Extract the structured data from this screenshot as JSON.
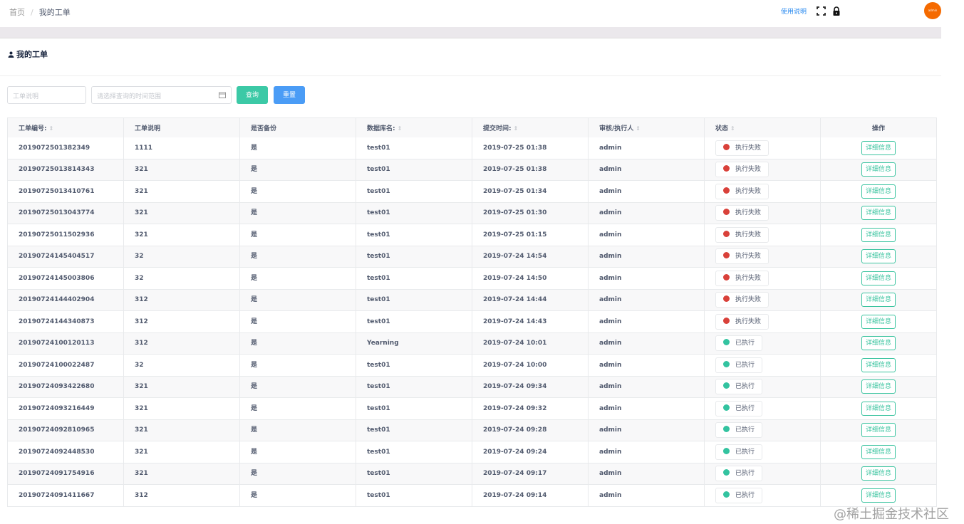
{
  "breadcrumb": {
    "home": "首页",
    "separator": "/",
    "current": "我的工单"
  },
  "header": {
    "help": "使用说明",
    "avatar": "admin",
    "icons": [
      "fullscreen-icon",
      "lock-icon"
    ]
  },
  "card": {
    "title": "我的工单",
    "icon": "user-icon"
  },
  "filters": {
    "desc_placeholder": "工单说明",
    "time_placeholder": "请选择查询的时间范围",
    "search": "查询",
    "reset": "重置"
  },
  "colors": {
    "search": "#3cc9a6",
    "reset": "#4a9cf6",
    "failed": "#d9413a",
    "done": "#33c3a0",
    "avatar": "#f56a00"
  },
  "table": {
    "columns": [
      "工单编号:",
      "工单说明",
      "是否备份",
      "数据库名:",
      "提交时间:",
      "审核/执行人",
      "状态",
      "操作"
    ],
    "sortable": [
      true,
      false,
      false,
      true,
      true,
      true,
      true,
      false
    ],
    "rows": [
      [
        "2019072501382349",
        "1111",
        "是",
        "test01",
        "2019-07-25 01:38",
        "admin",
        "执行失败",
        "详细信息"
      ],
      [
        "20190725013814343",
        "321",
        "是",
        "test01",
        "2019-07-25 01:38",
        "admin",
        "执行失败",
        "详细信息"
      ],
      [
        "20190725013410761",
        "321",
        "是",
        "test01",
        "2019-07-25 01:34",
        "admin",
        "执行失败",
        "详细信息"
      ],
      [
        "20190725013043774",
        "321",
        "是",
        "test01",
        "2019-07-25 01:30",
        "admin",
        "执行失败",
        "详细信息"
      ],
      [
        "20190725011502936",
        "321",
        "是",
        "test01",
        "2019-07-25 01:15",
        "admin",
        "执行失败",
        "详细信息"
      ],
      [
        "20190724145404517",
        "32",
        "是",
        "test01",
        "2019-07-24 14:54",
        "admin",
        "执行失败",
        "详细信息"
      ],
      [
        "20190724145003806",
        "32",
        "是",
        "test01",
        "2019-07-24 14:50",
        "admin",
        "执行失败",
        "详细信息"
      ],
      [
        "20190724144402904",
        "312",
        "是",
        "test01",
        "2019-07-24 14:44",
        "admin",
        "执行失败",
        "详细信息"
      ],
      [
        "20190724144340873",
        "312",
        "是",
        "test01",
        "2019-07-24 14:43",
        "admin",
        "执行失败",
        "详细信息"
      ],
      [
        "20190724100120113",
        "312",
        "是",
        "Yearning",
        "2019-07-24 10:01",
        "admin",
        "已执行",
        "详细信息"
      ],
      [
        "20190724100022487",
        "32",
        "是",
        "test01",
        "2019-07-24 10:00",
        "admin",
        "已执行",
        "详细信息"
      ],
      [
        "20190724093422680",
        "321",
        "是",
        "test01",
        "2019-07-24 09:34",
        "admin",
        "已执行",
        "详细信息"
      ],
      [
        "20190724093216449",
        "321",
        "是",
        "test01",
        "2019-07-24 09:32",
        "admin",
        "已执行",
        "详细信息"
      ],
      [
        "20190724092810965",
        "321",
        "是",
        "test01",
        "2019-07-24 09:28",
        "admin",
        "已执行",
        "详细信息"
      ],
      [
        "20190724092448530",
        "321",
        "是",
        "test01",
        "2019-07-24 09:24",
        "admin",
        "已执行",
        "详细信息"
      ],
      [
        "20190724091754916",
        "321",
        "是",
        "test01",
        "2019-07-24 09:17",
        "admin",
        "已执行",
        "详细信息"
      ],
      [
        "20190724091411667",
        "312",
        "是",
        "test01",
        "2019-07-24 09:14",
        "admin",
        "已执行",
        "详细信息"
      ]
    ]
  },
  "watermark": "@稀土掘金技术社区"
}
